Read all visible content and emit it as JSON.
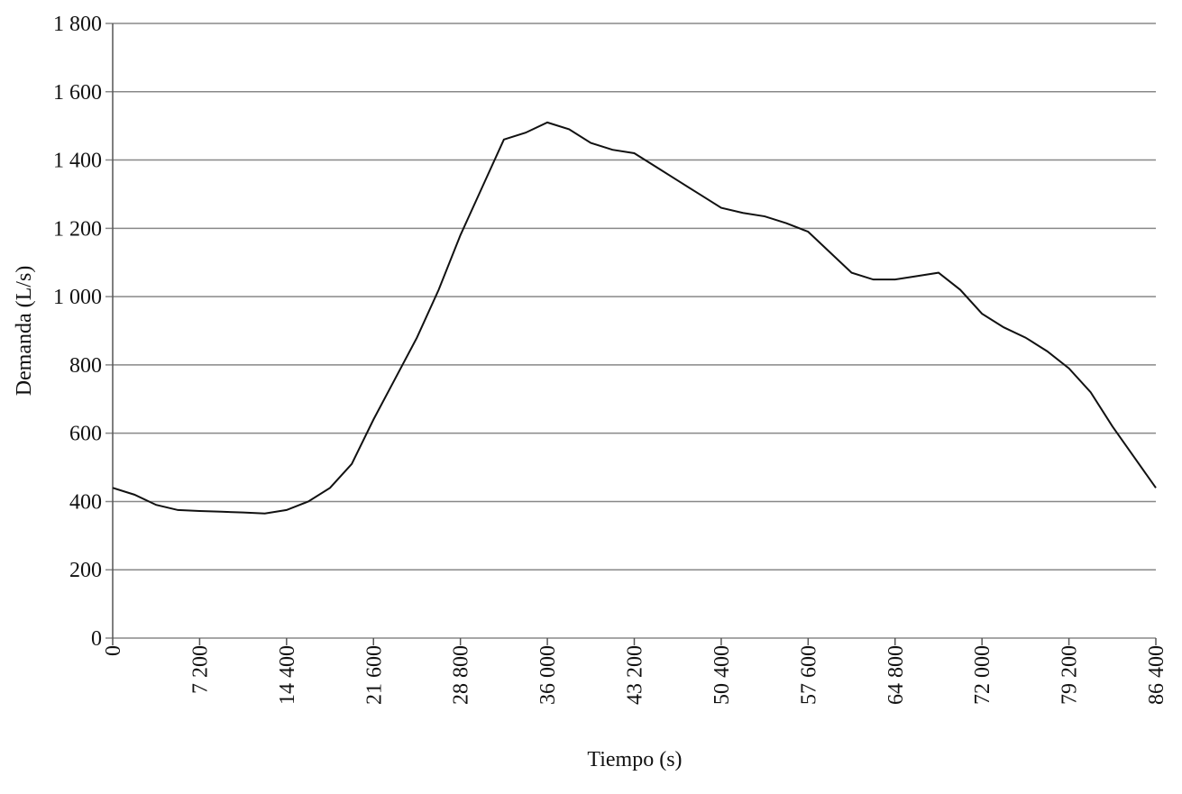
{
  "chart_data": {
    "type": "line",
    "x_label": "Tiempo (s)",
    "y_label": "Demanda (L/s)",
    "x": [
      0,
      1800,
      3600,
      5400,
      7200,
      9000,
      10800,
      12600,
      14400,
      16200,
      18000,
      19800,
      21600,
      23400,
      25200,
      27000,
      28800,
      30600,
      32400,
      34200,
      36000,
      37800,
      39600,
      41400,
      43200,
      45000,
      46800,
      48600,
      50400,
      52200,
      54000,
      55800,
      57600,
      59400,
      61200,
      63000,
      64800,
      66600,
      68400,
      70200,
      72000,
      73800,
      75600,
      77400,
      79200,
      81000,
      82800,
      84600,
      86400
    ],
    "series": [
      {
        "color": "#111111",
        "values": [
          440,
          420,
          390,
          375,
          372,
          370,
          368,
          365,
          375,
          400,
          440,
          510,
          640,
          760,
          880,
          1020,
          1180,
          1320,
          1460,
          1480,
          1510,
          1490,
          1450,
          1430,
          1420,
          1380,
          1340,
          1300,
          1260,
          1245,
          1235,
          1215,
          1190,
          1130,
          1070,
          1050,
          1050,
          1060,
          1070,
          1020,
          950,
          910,
          880,
          840,
          790,
          720,
          620,
          530,
          440
        ]
      }
    ],
    "xlim": [
      0,
      86400
    ],
    "xticks": [
      0,
      {
        "value": 7200,
        "label": "7 200"
      },
      {
        "value": 14400,
        "label": "14 400"
      },
      {
        "value": 21600,
        "label": "21 600"
      },
      {
        "value": 28800,
        "label": "28 800"
      },
      {
        "value": 36000,
        "label": "36 000"
      },
      {
        "value": 43200,
        "label": "43 200"
      },
      {
        "value": 50400,
        "label": "50 400"
      },
      {
        "value": 57600,
        "label": "57 600"
      },
      {
        "value": 64800,
        "label": "64 800"
      },
      {
        "value": 72000,
        "label": "72 000"
      },
      {
        "value": 79200,
        "label": "79 200"
      },
      {
        "value": 86400,
        "label": "86 400"
      }
    ],
    "ylim": [
      0,
      1800
    ],
    "yticks": [
      0,
      200,
      400,
      600,
      800,
      {
        "value": 1000,
        "label": "1 000"
      },
      {
        "value": 1200,
        "label": "1 200"
      },
      {
        "value": 1400,
        "label": "1 400"
      },
      {
        "value": 1600,
        "label": "1 600"
      },
      {
        "value": 1800,
        "label": "1 800"
      }
    ],
    "grid": true
  }
}
